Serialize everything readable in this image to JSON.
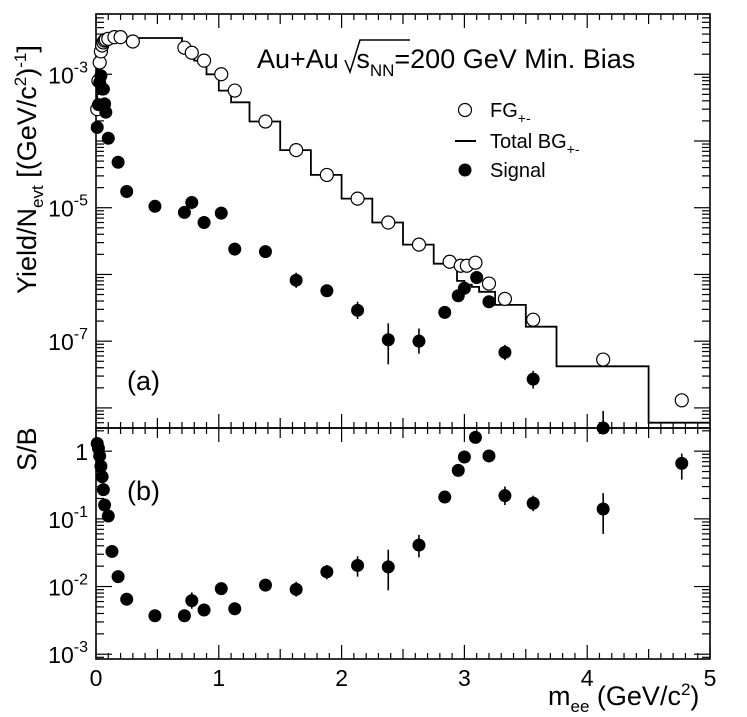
{
  "chart_data": [
    {
      "panel_label": "(a)",
      "type": "scatter",
      "ylabel": "Yield/Nevt [(GeV/c2)-1]",
      "ylabel_parts": {
        "main": "Yield/N",
        "sub": "evt",
        "bracket_open": " [(GeV/c",
        "sup_two": "2",
        "bracket_close": ")",
        "sup_exp": "-1",
        "end": "]"
      },
      "title": {
        "text1": "Au+Au ",
        "text2": "s",
        "sub": "NN",
        "text3": "=200 GeV Min. Bias"
      },
      "yscale": "log",
      "ylim": [
        5e-09,
        0.008
      ],
      "xlim": [
        0,
        5
      ],
      "y_tick_labels": [
        {
          "value": 0.001,
          "base": "10",
          "exp": "-3"
        },
        {
          "value": 1e-05,
          "base": "10",
          "exp": "-5"
        },
        {
          "value": 1e-07,
          "base": "10",
          "exp": "-7"
        }
      ],
      "legend": [
        {
          "marker": "open-circle",
          "label": "FG",
          "sub": "+-"
        },
        {
          "marker": "line",
          "label": "Total BG",
          "sub": "+-"
        },
        {
          "marker": "filled-circle",
          "label": "Signal",
          "sub": ""
        }
      ],
      "series": [
        {
          "name": "FG+-",
          "marker": "open-circle",
          "points": [
            {
              "x": 0.01,
              "y": 0.0003
            },
            {
              "x": 0.02,
              "y": 0.0008
            },
            {
              "x": 0.03,
              "y": 0.0015
            },
            {
              "x": 0.04,
              "y": 0.0022
            },
            {
              "x": 0.05,
              "y": 0.0027
            },
            {
              "x": 0.06,
              "y": 0.003
            },
            {
              "x": 0.07,
              "y": 0.0032
            },
            {
              "x": 0.08,
              "y": 0.0033
            },
            {
              "x": 0.1,
              "y": 0.0034
            },
            {
              "x": 0.15,
              "y": 0.0036
            },
            {
              "x": 0.2,
              "y": 0.0036
            },
            {
              "x": 0.3,
              "y": 0.0031
            },
            {
              "x": 0.72,
              "y": 0.0025
            },
            {
              "x": 0.78,
              "y": 0.0021
            },
            {
              "x": 0.88,
              "y": 0.0016
            },
            {
              "x": 1.02,
              "y": 0.001
            },
            {
              "x": 1.13,
              "y": 0.00057
            },
            {
              "x": 1.38,
              "y": 0.000196
            },
            {
              "x": 1.63,
              "y": 7.3e-05
            },
            {
              "x": 1.88,
              "y": 3.1e-05
            },
            {
              "x": 2.13,
              "y": 1.37e-05
            },
            {
              "x": 2.38,
              "y": 6e-06
            },
            {
              "x": 2.63,
              "y": 2.8e-06
            },
            {
              "x": 2.88,
              "y": 1.55e-06
            },
            {
              "x": 2.97,
              "y": 1.35e-06
            },
            {
              "x": 3.02,
              "y": 1.35e-06
            },
            {
              "x": 3.09,
              "y": 1.5e-06
            },
            {
              "x": 3.2,
              "y": 7.3e-07
            },
            {
              "x": 3.33,
              "y": 4.3e-07
            },
            {
              "x": 3.56,
              "y": 2.1e-07
            },
            {
              "x": 4.13,
              "y": 5.3e-08
            },
            {
              "x": 4.77,
              "y": 1.3e-08
            }
          ]
        },
        {
          "name": "Total BG+-",
          "marker": "step-line",
          "edges": [
            0,
            0.01,
            0.03,
            0.05,
            0.1,
            0.15,
            0.7,
            0.75,
            0.8,
            0.9,
            1.0,
            1.1,
            1.25,
            1.5,
            1.75,
            2.0,
            2.25,
            2.5,
            2.75,
            2.94,
            3.0,
            3.06,
            3.12,
            3.25,
            3.5,
            3.75,
            4.5,
            5.0
          ],
          "values": [
            0.0003,
            0.0012,
            0.0026,
            0.0032,
            0.0035,
            0.0035,
            0.0025,
            0.0021,
            0.0016,
            0.001,
            0.00057,
            0.00038,
            0.000196,
            7.3e-05,
            3.1e-05,
            1.37e-05,
            6e-06,
            2.8e-06,
            1.45e-06,
            8e-07,
            7e-07,
            6.5e-07,
            5.5e-07,
            3.5e-07,
            1.65e-07,
            4.2e-08,
            6e-09
          ]
        },
        {
          "name": "Signal",
          "marker": "filled-circle",
          "points": [
            {
              "x": 0.01,
              "y": 0.00016,
              "elo": 0.00016,
              "ehi": 0.00016
            },
            {
              "x": 0.02,
              "y": 0.00035,
              "elo": 0.00035,
              "ehi": 0.00035
            },
            {
              "x": 0.03,
              "y": 0.00075,
              "elo": 0.00075,
              "ehi": 0.00075
            },
            {
              "x": 0.04,
              "y": 0.00095,
              "elo": 0.00095,
              "ehi": 0.00095
            },
            {
              "x": 0.05,
              "y": 0.0006,
              "elo": 0.0006,
              "ehi": 0.0006
            },
            {
              "x": 0.06,
              "y": 0.0006,
              "elo": 0.0006,
              "ehi": 0.0006
            },
            {
              "x": 0.07,
              "y": 0.00036,
              "elo": 0.00036,
              "ehi": 0.00036
            },
            {
              "x": 0.08,
              "y": 0.00027,
              "elo": 0.00027,
              "ehi": 0.00027
            },
            {
              "x": 0.1,
              "y": 0.00011,
              "elo": 0.00011,
              "ehi": 0.00011
            },
            {
              "x": 0.18,
              "y": 4.8e-05,
              "elo": 4.8e-05,
              "ehi": 4.8e-05
            },
            {
              "x": 0.25,
              "y": 1.75e-05,
              "elo": 1.75e-05,
              "ehi": 1.75e-05
            },
            {
              "x": 0.48,
              "y": 1.05e-05,
              "elo": 1.05e-05,
              "ehi": 1.05e-05
            },
            {
              "x": 0.72,
              "y": 8.5e-06,
              "elo": 7.3e-06,
              "ehi": 9.7e-06
            },
            {
              "x": 0.78,
              "y": 1.2e-05,
              "elo": 9.5e-06,
              "ehi": 1.5e-05
            },
            {
              "x": 0.88,
              "y": 6e-06,
              "elo": 6e-06,
              "ehi": 6e-06
            },
            {
              "x": 1.02,
              "y": 8.3e-06,
              "elo": 8.3e-06,
              "ehi": 8.3e-06
            },
            {
              "x": 1.13,
              "y": 2.4e-06,
              "elo": 1.95e-06,
              "ehi": 2.9e-06
            },
            {
              "x": 1.38,
              "y": 2.2e-06,
              "elo": 2.2e-06,
              "ehi": 2.2e-06
            },
            {
              "x": 1.63,
              "y": 8.2e-07,
              "elo": 6.3e-07,
              "ehi": 1.06e-06
            },
            {
              "x": 1.88,
              "y": 5.7e-07,
              "elo": 4.6e-07,
              "ehi": 7e-07
            },
            {
              "x": 2.13,
              "y": 2.9e-07,
              "elo": 2.15e-07,
              "ehi": 3.9e-07
            },
            {
              "x": 2.38,
              "y": 1.05e-07,
              "elo": 4.5e-08,
              "ehi": 1.85e-07
            },
            {
              "x": 2.63,
              "y": 1e-07,
              "elo": 6.5e-08,
              "ehi": 1.55e-07
            },
            {
              "x": 2.84,
              "y": 2.7e-07,
              "elo": 2.7e-07,
              "ehi": 2.7e-07
            },
            {
              "x": 2.95,
              "y": 4.8e-07,
              "elo": 4.8e-07,
              "ehi": 4.8e-07
            },
            {
              "x": 3.0,
              "y": 6.2e-07,
              "elo": 6.2e-07,
              "ehi": 6.2e-07
            },
            {
              "x": 3.1,
              "y": 9e-07,
              "elo": 9e-07,
              "ehi": 9e-07
            },
            {
              "x": 3.2,
              "y": 3.9e-07,
              "elo": 3.9e-07,
              "ehi": 3.9e-07
            },
            {
              "x": 3.33,
              "y": 6.8e-08,
              "elo": 5.2e-08,
              "ehi": 8.8e-08
            },
            {
              "x": 3.56,
              "y": 2.7e-08,
              "elo": 1.95e-08,
              "ehi": 3.6e-08
            },
            {
              "x": 4.13,
              "y": 5e-09,
              "elo": 5e-09,
              "ehi": 9e-09
            }
          ]
        }
      ]
    },
    {
      "panel_label": "(b)",
      "type": "scatter",
      "ylabel": "S/B",
      "yscale": "log",
      "ylim": [
        0.00085,
        2.2
      ],
      "xlim": [
        0,
        5
      ],
      "xlabel": "mee (GeV/c2)",
      "xlabel_parts": {
        "main": "m",
        "sub": "ee",
        "rest": " (GeV/c",
        "sup": "2",
        "end": ")"
      },
      "x_tick_labels": [
        "0",
        "1",
        "2",
        "3",
        "4",
        "5"
      ],
      "y_tick_labels": [
        {
          "value": 1,
          "text": "1",
          "base": "",
          "exp": ""
        },
        {
          "value": 0.1,
          "text": "",
          "base": "10",
          "exp": "-1"
        },
        {
          "value": 0.01,
          "text": "",
          "base": "10",
          "exp": "-2"
        },
        {
          "value": 0.001,
          "text": "",
          "base": "10",
          "exp": "-3"
        }
      ],
      "series": [
        {
          "name": "S/B",
          "marker": "filled-circle",
          "points": [
            {
              "x": 0.01,
              "y": 1.3,
              "elo": 1.3,
              "ehi": 1.3
            },
            {
              "x": 0.02,
              "y": 1.1,
              "elo": 1.1,
              "ehi": 1.1
            },
            {
              "x": 0.03,
              "y": 0.85,
              "elo": 0.85,
              "ehi": 0.85
            },
            {
              "x": 0.04,
              "y": 0.6,
              "elo": 0.6,
              "ehi": 0.6
            },
            {
              "x": 0.05,
              "y": 0.42,
              "elo": 0.42,
              "ehi": 0.42
            },
            {
              "x": 0.06,
              "y": 0.27,
              "elo": 0.27,
              "ehi": 0.27
            },
            {
              "x": 0.07,
              "y": 0.16,
              "elo": 0.16,
              "ehi": 0.16
            },
            {
              "x": 0.1,
              "y": 0.11,
              "elo": 0.11,
              "ehi": 0.11
            },
            {
              "x": 0.13,
              "y": 0.033,
              "elo": 0.033,
              "ehi": 0.033
            },
            {
              "x": 0.18,
              "y": 0.014,
              "elo": 0.014,
              "ehi": 0.014
            },
            {
              "x": 0.25,
              "y": 0.0065,
              "elo": 0.0065,
              "ehi": 0.0065
            },
            {
              "x": 0.48,
              "y": 0.0037,
              "elo": 0.0037,
              "ehi": 0.0037
            },
            {
              "x": 0.72,
              "y": 0.0037,
              "elo": 0.0031,
              "ehi": 0.0044
            },
            {
              "x": 0.78,
              "y": 0.0062,
              "elo": 0.0047,
              "ehi": 0.0082
            },
            {
              "x": 0.88,
              "y": 0.0045,
              "elo": 0.0045,
              "ehi": 0.0045
            },
            {
              "x": 1.02,
              "y": 0.0093,
              "elo": 0.0078,
              "ehi": 0.011
            },
            {
              "x": 1.13,
              "y": 0.0047,
              "elo": 0.0038,
              "ehi": 0.0058
            },
            {
              "x": 1.38,
              "y": 0.0105,
              "elo": 0.0105,
              "ehi": 0.0105
            },
            {
              "x": 1.63,
              "y": 0.0091,
              "elo": 0.0071,
              "ehi": 0.0118
            },
            {
              "x": 1.88,
              "y": 0.0165,
              "elo": 0.0128,
              "ehi": 0.0208
            },
            {
              "x": 2.13,
              "y": 0.0205,
              "elo": 0.014,
              "ehi": 0.028
            },
            {
              "x": 2.38,
              "y": 0.0195,
              "elo": 0.0088,
              "ehi": 0.035
            },
            {
              "x": 2.63,
              "y": 0.041,
              "elo": 0.027,
              "ehi": 0.058
            },
            {
              "x": 2.84,
              "y": 0.21,
              "elo": 0.21,
              "ehi": 0.21
            },
            {
              "x": 2.95,
              "y": 0.52,
              "elo": 0.52,
              "ehi": 0.52
            },
            {
              "x": 3.0,
              "y": 0.82,
              "elo": 0.82,
              "ehi": 0.82
            },
            {
              "x": 3.09,
              "y": 1.6,
              "elo": 1.6,
              "ehi": 1.6
            },
            {
              "x": 3.2,
              "y": 0.85,
              "elo": 0.85,
              "ehi": 0.85
            },
            {
              "x": 3.33,
              "y": 0.22,
              "elo": 0.16,
              "ehi": 0.3
            },
            {
              "x": 3.56,
              "y": 0.17,
              "elo": 0.13,
              "ehi": 0.22
            },
            {
              "x": 4.13,
              "y": 0.14,
              "elo": 0.06,
              "ehi": 0.24
            },
            {
              "x": 4.77,
              "y": 0.66,
              "elo": 0.38,
              "ehi": 0.92
            }
          ]
        }
      ]
    }
  ]
}
